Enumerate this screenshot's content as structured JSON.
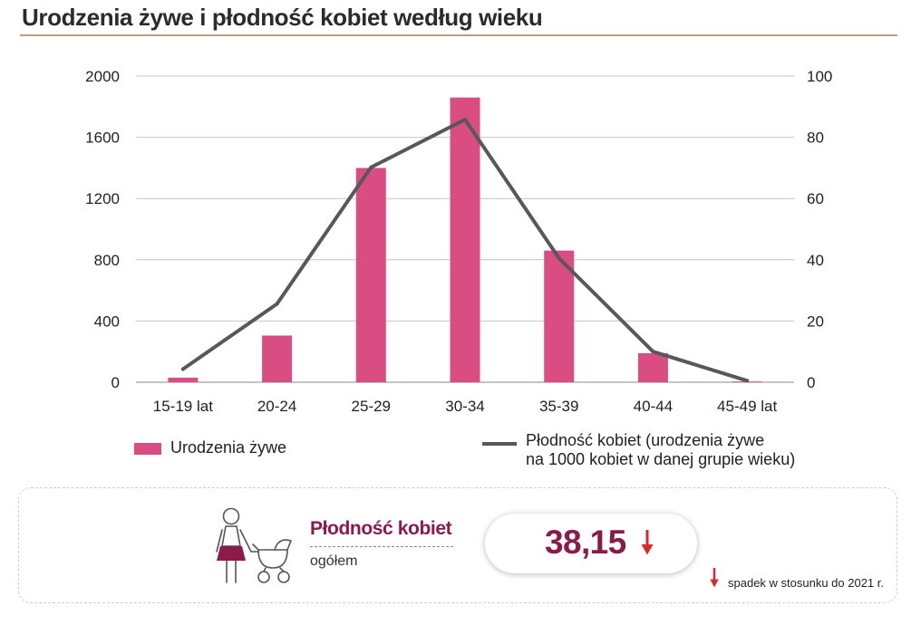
{
  "page": {
    "title": "Urodzenia żywe i płodność kobiet według wieku"
  },
  "chart_data": {
    "type": "bar",
    "categories": [
      "15-19 lat",
      "20-24",
      "25-29",
      "30-34",
      "35-39",
      "40-44",
      "45-49 lat"
    ],
    "series": [
      {
        "name": "Urodzenia żywe",
        "type": "bar",
        "axis": "left",
        "color": "#d94d83",
        "values": [
          30,
          305,
          1400,
          1860,
          860,
          190,
          5
        ]
      },
      {
        "name": "Płodność kobiet (urodzenia żywe na 1000 kobiet w danej grupie wieku)",
        "type": "line",
        "axis": "right",
        "color": "#585858",
        "values": [
          4.3,
          25.6,
          70.2,
          85.8,
          40.5,
          10,
          0.5
        ]
      }
    ],
    "left_axis": {
      "ylim": [
        0,
        2000
      ],
      "ticks": [
        0,
        400,
        800,
        1200,
        1600,
        2000
      ]
    },
    "right_axis": {
      "ylim": [
        0,
        100
      ],
      "ticks": [
        0,
        20,
        40,
        60,
        80,
        100
      ]
    },
    "grid": true,
    "legend": {
      "position": "bottom",
      "bar_label": "Urodzenia żywe",
      "line_label_1": "Płodność kobiet (urodzenia żywe",
      "line_label_2": "na 1000 kobiet w danej grupie wieku)"
    }
  },
  "summary": {
    "title": "Płodność kobiet",
    "subtitle": "ogółem",
    "value": "38,15",
    "trend": "down",
    "trend_color": "#e0262b",
    "accent_color": "#8c1a4a",
    "note": "spadek w stosunku do 2021 r.",
    "icon": "mother-with-stroller-icon"
  }
}
